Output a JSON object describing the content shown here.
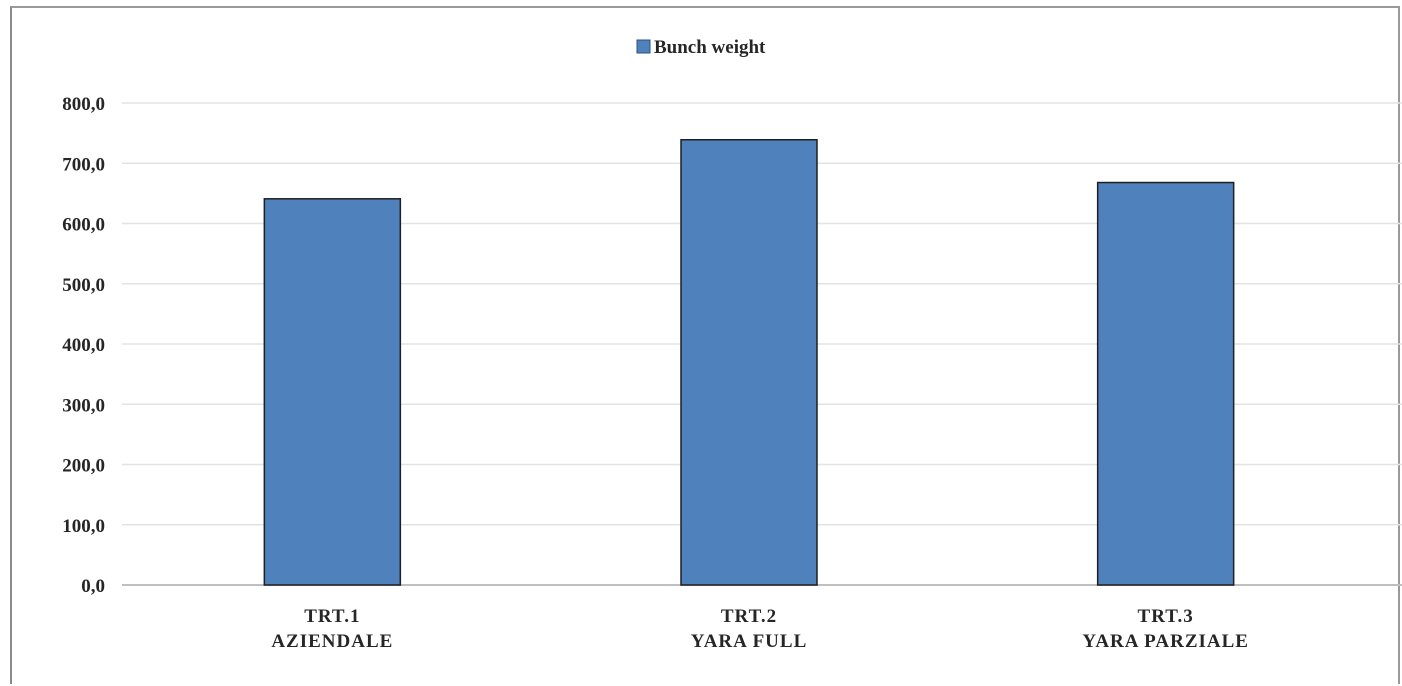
{
  "chart_data": {
    "type": "bar",
    "title": "",
    "xlabel": "",
    "ylabel": "",
    "categories": [
      [
        "TRT.1",
        "AZIENDALE"
      ],
      [
        "TRT.2",
        "YARA FULL"
      ],
      [
        "TRT.3",
        "YARA PARZIALE"
      ]
    ],
    "series": [
      {
        "name": "Bunch weight",
        "color": "#4f81bd",
        "values": [
          641.0,
          739.0,
          668.0
        ]
      }
    ],
    "ylim": [
      0,
      800
    ],
    "yticks": [
      0,
      100,
      200,
      300,
      400,
      500,
      600,
      700,
      800
    ],
    "ytick_labels": [
      "0,0",
      "100,0",
      "200,0",
      "300,0",
      "400,0",
      "500,0",
      "600,0",
      "700,0",
      "800,0"
    ],
    "grid": true,
    "legend_position": "top-center"
  }
}
